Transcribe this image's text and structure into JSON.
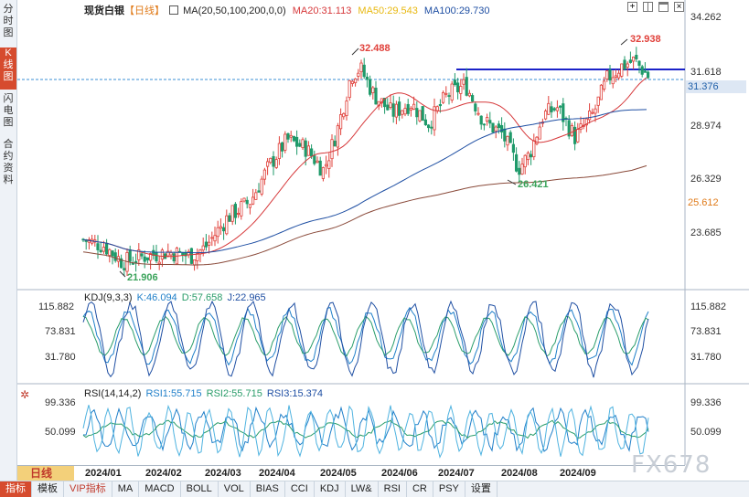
{
  "side_tabs": [
    "分时图",
    "K线图",
    "闪电图",
    "合约资料"
  ],
  "header": {
    "symbol": "现货白银",
    "period": "【日线】",
    "ma_config": "MA(20,50,100,200,0,0)",
    "ma20": "MA20:31.113",
    "ma50": "MA50:29.543",
    "ma100": "MA100:29.730"
  },
  "price_axis": [
    "34.262",
    "31.618",
    "28.974",
    "26.329",
    "23.685"
  ],
  "price_tags": {
    "current": "31.376",
    "ma200": "25.612"
  },
  "annotations": {
    "high1": "32.488",
    "high2": "32.938",
    "low_mid": "26.421",
    "low_start": "21.906"
  },
  "kdj": {
    "title": "KDJ(9,3,3)",
    "k": "K:46.094",
    "d": "D:57.658",
    "j": "J:22.965",
    "axis": [
      "115.882",
      "73.831",
      "31.780"
    ]
  },
  "rsi": {
    "title": "RSI(14,14,2)",
    "rsi1": "RSI1:55.715",
    "rsi2": "RSI2:55.715",
    "rsi3": "RSI3:15.374",
    "axis": [
      "99.336",
      "50.099"
    ]
  },
  "x_axis": [
    "2024/01",
    "2024/02",
    "2024/03",
    "2024/04",
    "2024/05",
    "2024/06",
    "2024/07",
    "2024/08",
    "2024/09"
  ],
  "period_tag": "日线",
  "bottom_tabs": [
    "指标",
    "模板",
    "VIP指标",
    "MA",
    "MACD",
    "BOLL",
    "VOL",
    "BIAS",
    "CCI",
    "KDJ",
    "LW&",
    "RSI",
    "CR",
    "PSY",
    "设置"
  ],
  "watermark": "FX678",
  "icons": [
    "checkbox-icon",
    "plus-icon",
    "grid-icon",
    "window-icon",
    "close-icon",
    "gear-icon"
  ],
  "colors": {
    "up": "#e0403a",
    "down": "#1f9a6a",
    "ma20": "#d6383a",
    "ma50": "#f0c419",
    "ma100": "#1f4fa3",
    "ma200": "#8a4a3a",
    "resistance": "#1a22c8"
  }
}
